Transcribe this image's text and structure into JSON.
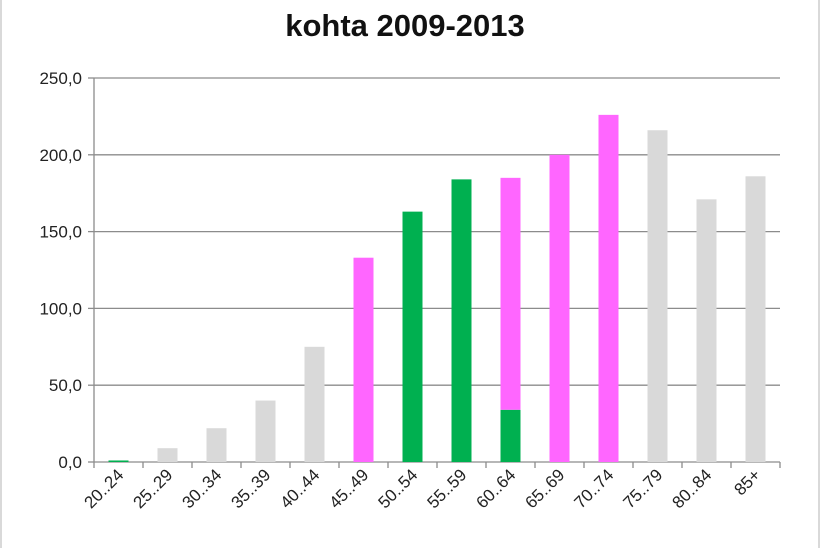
{
  "chart_data": {
    "type": "bar",
    "title": "kohta 2009-2013",
    "xlabel": "",
    "ylabel": "",
    "ylim": [
      0,
      250
    ],
    "yticks": [
      "0,0",
      "50,0",
      "100,0",
      "150,0",
      "200,0",
      "250,0"
    ],
    "grid": true,
    "legend": "none",
    "categories": [
      "20..24",
      "25..29",
      "30..34",
      "35..39",
      "40..44",
      "45..49",
      "50..54",
      "55..59",
      "60..64",
      "65..69",
      "70..74",
      "75..79",
      "80..84",
      "85+"
    ],
    "series": [
      {
        "color": "#00b050",
        "values": [
          1,
          0,
          0,
          0,
          0,
          0,
          163,
          184,
          34,
          0,
          0,
          0,
          0,
          0
        ]
      },
      {
        "color": "#d9d9d9",
        "values": [
          0,
          9,
          22,
          40,
          75,
          0,
          0,
          0,
          0,
          0,
          0,
          216,
          171,
          186
        ]
      },
      {
        "color": "#ff66ff",
        "values": [
          0,
          0,
          0,
          0,
          0,
          133,
          0,
          0,
          151,
          200,
          226,
          0,
          0,
          0
        ]
      }
    ]
  }
}
